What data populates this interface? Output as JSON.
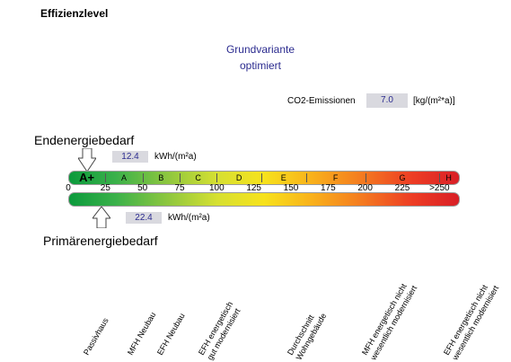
{
  "title": "Effizienzlevel",
  "variant": {
    "line1": "Grundvariante",
    "line2": "optimiert"
  },
  "co2": {
    "label": "CO2-Emissionen",
    "value": "7.0",
    "unit": "[kg/(m²*a)]"
  },
  "end_energy": {
    "label": "Endenergiebedarf",
    "value": "12.4",
    "unit": "kWh/(m²a)"
  },
  "primary_energy": {
    "label": "Primärenergiebedarf",
    "value": "22.4",
    "unit": "kWh/(m²a)"
  },
  "chart_data": {
    "type": "bar",
    "scale_ticks": [
      "0",
      "25",
      "50",
      "75",
      "100",
      "125",
      "150",
      "175",
      "200",
      "225",
      ">250"
    ],
    "xlim": [
      0,
      262.5
    ],
    "classes": [
      {
        "label": "A+",
        "from": 0,
        "to": 25
      },
      {
        "label": "A",
        "from": 25,
        "to": 50
      },
      {
        "label": "B",
        "from": 50,
        "to": 75
      },
      {
        "label": "C",
        "from": 75,
        "to": 100
      },
      {
        "label": "D",
        "from": 100,
        "to": 130
      },
      {
        "label": "E",
        "from": 130,
        "to": 160
      },
      {
        "label": "F",
        "from": 160,
        "to": 200
      },
      {
        "label": "G",
        "from": 200,
        "to": 250
      },
      {
        "label": "H",
        "from": 250,
        "to": 262.5
      }
    ],
    "markers": {
      "end_energy": 12.4,
      "primary_energy": 22.4
    },
    "categories": [
      {
        "label": "Passivhaus",
        "value": 15
      },
      {
        "label": "MFH Neubau",
        "value": 45
      },
      {
        "label": "EFH Neubau",
        "value": 65
      },
      {
        "label": "EFH energetisch\ngut modernisiert",
        "value": 90
      },
      {
        "label": "Durchschnitt\nWohngebäude",
        "value": 150
      },
      {
        "label": "MFH energetisch nicht\nwesentlich modernisiert",
        "value": 200
      },
      {
        "label": "EFH energetisch nicht\nwesentlich modernisiert",
        "value": 255
      }
    ]
  }
}
